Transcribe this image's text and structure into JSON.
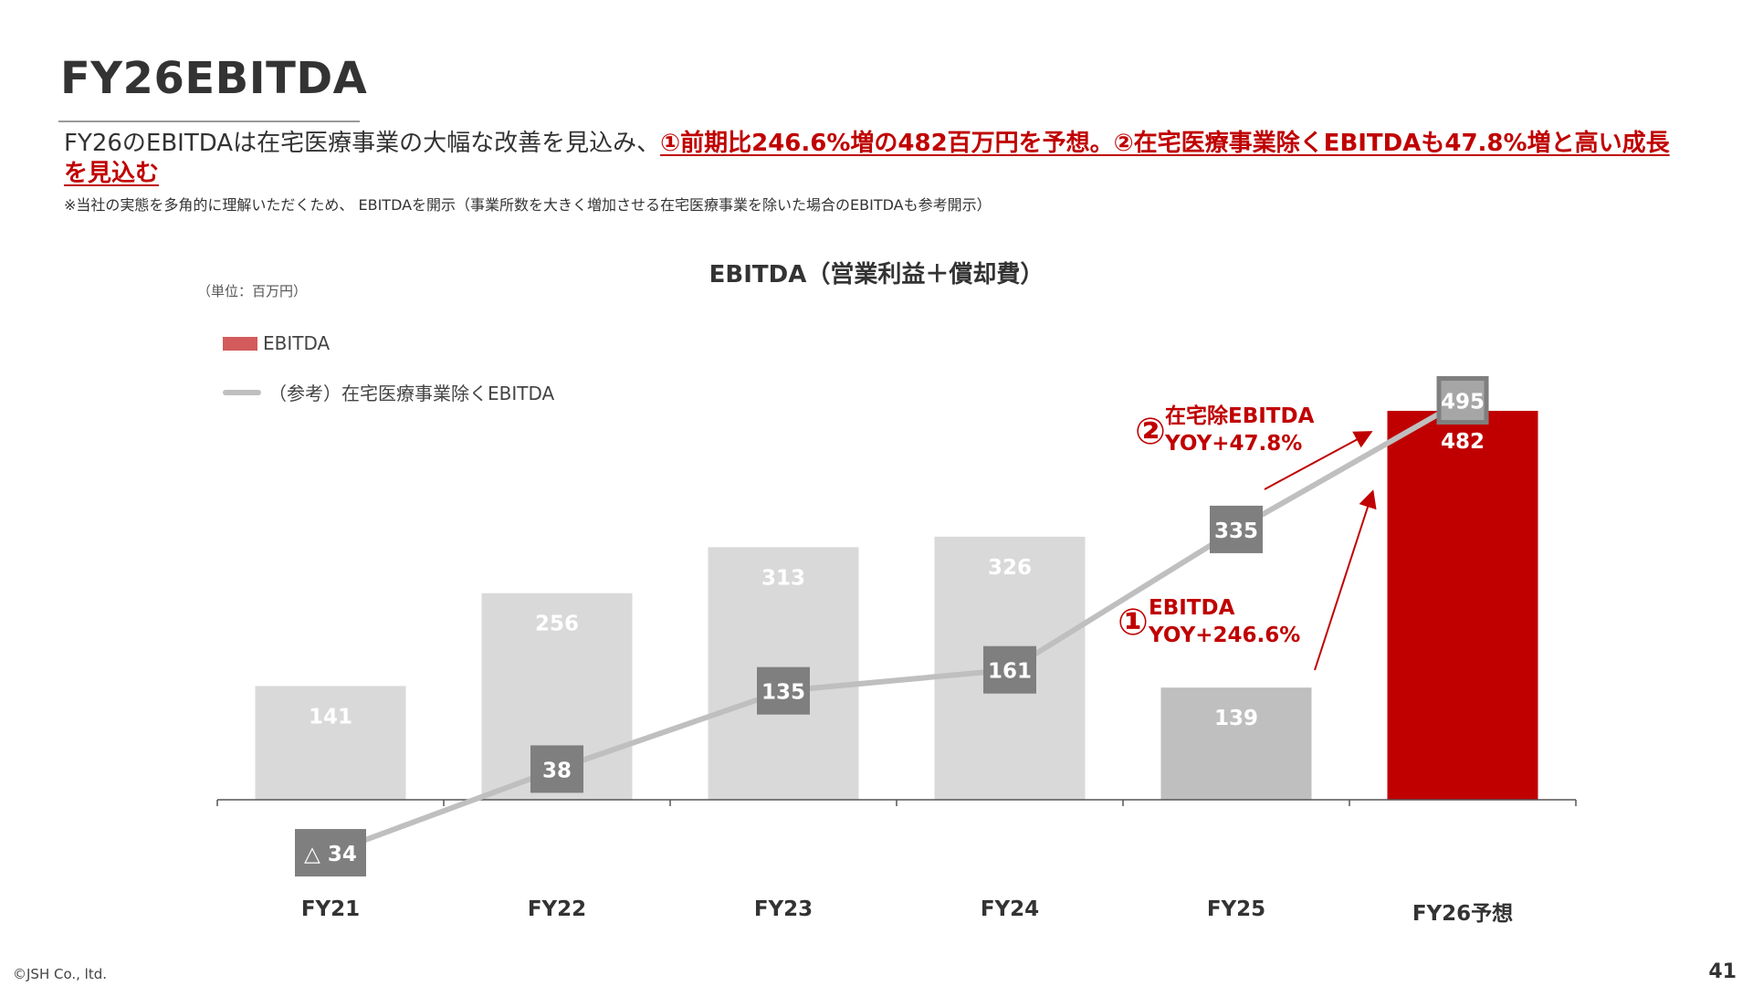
{
  "page": {
    "title": "FY26EBITDA",
    "lead_plain": "FY26のEBITDAは在宅医療事業の大幅な改善を見込み、",
    "lead_highlight": "①前期比246.6%増の482百万円を予想。②在宅医療事業除くEBITDAも47.8%増と高い成長を見込む",
    "note": "※当社の実態を多角的に理解いただくため、 EBITDAを開示（事業所数を大きく増加させる在宅医療事業を除いた場合のEBITDAも参考開示）",
    "unit": "（単位：百万円）",
    "footer_copyright": "©JSH Co., ltd.",
    "page_number": "41"
  },
  "chart_data": {
    "type": "bar",
    "title": "EBITDA（営業利益＋償却費）",
    "categories": [
      "FY21",
      "FY22",
      "FY23",
      "FY24",
      "FY25",
      "FY26予想"
    ],
    "series": [
      {
        "name": "EBITDA",
        "kind": "bar",
        "values": [
          141,
          256,
          313,
          326,
          139,
          482
        ],
        "labels": [
          "141",
          "256",
          "313",
          "326",
          "139",
          "482"
        ],
        "colors": [
          "#d9d9d9",
          "#d9d9d9",
          "#d9d9d9",
          "#d9d9d9",
          "#bfbfbf",
          "#c00000"
        ]
      },
      {
        "name": "（参考）在宅医療事業除くEBITDA",
        "kind": "line",
        "values": [
          -34,
          38,
          135,
          161,
          335,
          495
        ],
        "labels": [
          "△ 34",
          "38",
          "135",
          "161",
          "335",
          "495"
        ]
      }
    ],
    "ylim": [
      -80,
      530
    ],
    "grid": false,
    "legend_position": "top-left",
    "annotations": [
      {
        "number": "②",
        "line1": "在宅除EBITDA",
        "line2": "YOY+47.8%"
      },
      {
        "number": "①",
        "line1": "EBITDA",
        "line2": "YOY+246.6%"
      }
    ],
    "colors": {
      "bar": "#d9d9d9",
      "bar_prior": "#bfbfbf",
      "bar_forecast": "#c00000",
      "line": "#bfbfbf",
      "marker": "#808080",
      "accent": "#c00000"
    }
  }
}
